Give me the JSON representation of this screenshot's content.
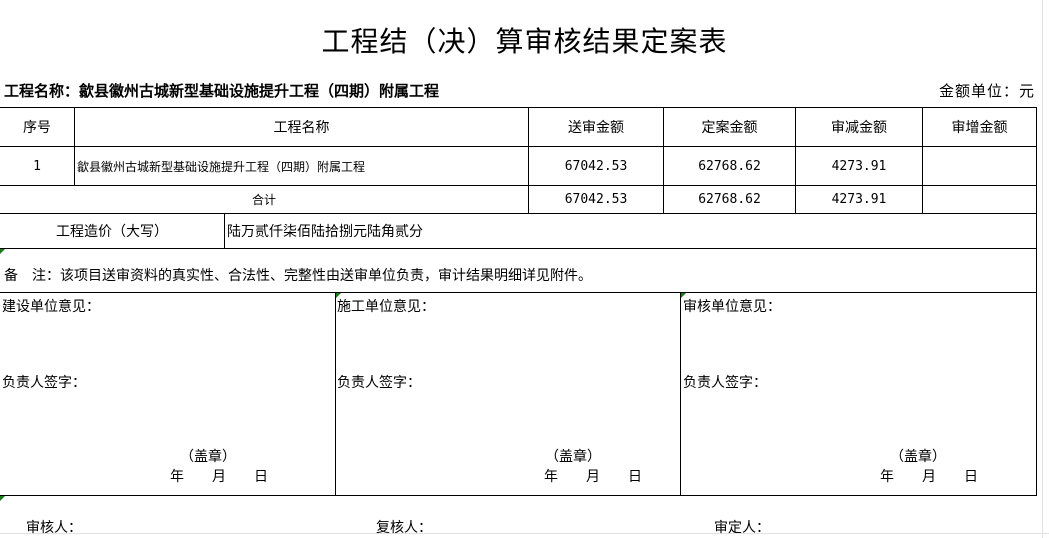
{
  "title": "工程结（决）算审核结果定案表",
  "project_label": "工程名称：歙县徽州古城新型基础设施提升工程（四期）附属工程",
  "unit_label": "金额单位：元",
  "headers": [
    "序号",
    "工程名称",
    "送审金额",
    "定案金额",
    "审减金额",
    "审增金额"
  ],
  "rows": [
    {
      "no": "1",
      "name": "歙县徽州古城新型基础设施提升工程（四期）附属工程",
      "submitted": "67042.53",
      "approved": "62768.62",
      "reduced": "4273.91",
      "increased": ""
    }
  ],
  "total": {
    "label": "合计",
    "submitted": "67042.53",
    "approved": "62768.62",
    "reduced": "4273.91",
    "increased": ""
  },
  "capital": {
    "label": "工程造价（大写）",
    "value": "陆万贰仟柒佰陆拾捌元陆角贰分"
  },
  "note": "备　注：该项目送审资料的真实性、合法性、完整性由送审单位负责，审计结果明细详见附件。",
  "opinions": [
    {
      "title": "建设单位意见：",
      "sign": "负责人签字：",
      "seal": "（盖章）",
      "date": "年　　月　　日"
    },
    {
      "title": "施工单位意见：",
      "sign": "负责人签字：",
      "seal": "（盖章）",
      "date": "年　　月　　日"
    },
    {
      "title": "审核单位意见：",
      "sign": "负责人签字：",
      "seal": "（盖章）",
      "date": "年　　月　　日"
    }
  ],
  "footer": [
    "审核人：",
    "复核人：",
    "审定人："
  ]
}
